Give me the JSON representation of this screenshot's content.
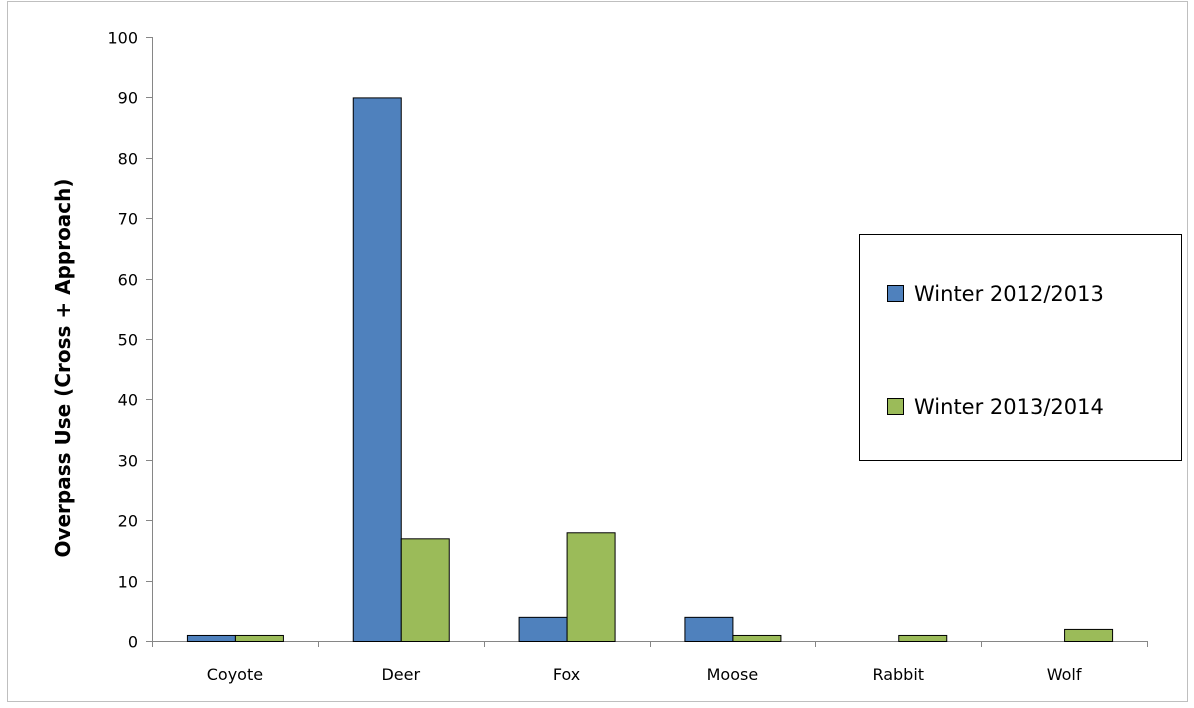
{
  "chart_data": {
    "type": "bar",
    "title": "",
    "xlabel": "",
    "ylabel": "Overpass Use (Cross + Approach)",
    "categories": [
      "Coyote",
      "Deer",
      "Fox",
      "Moose",
      "Rabbit",
      "Wolf"
    ],
    "series": [
      {
        "name": "Winter 2012/2013",
        "color": "#4f81bd",
        "values": [
          1,
          90,
          4,
          4,
          0,
          0
        ]
      },
      {
        "name": "Winter 2013/2014",
        "color": "#9bbb59",
        "values": [
          1,
          17,
          18,
          1,
          1,
          2
        ]
      }
    ],
    "ylim": [
      0,
      100
    ],
    "yticks": [
      "0",
      "10",
      "20",
      "30",
      "40",
      "50",
      "60",
      "70",
      "80",
      "90",
      "100"
    ],
    "grid": false,
    "legend_position": "right"
  }
}
